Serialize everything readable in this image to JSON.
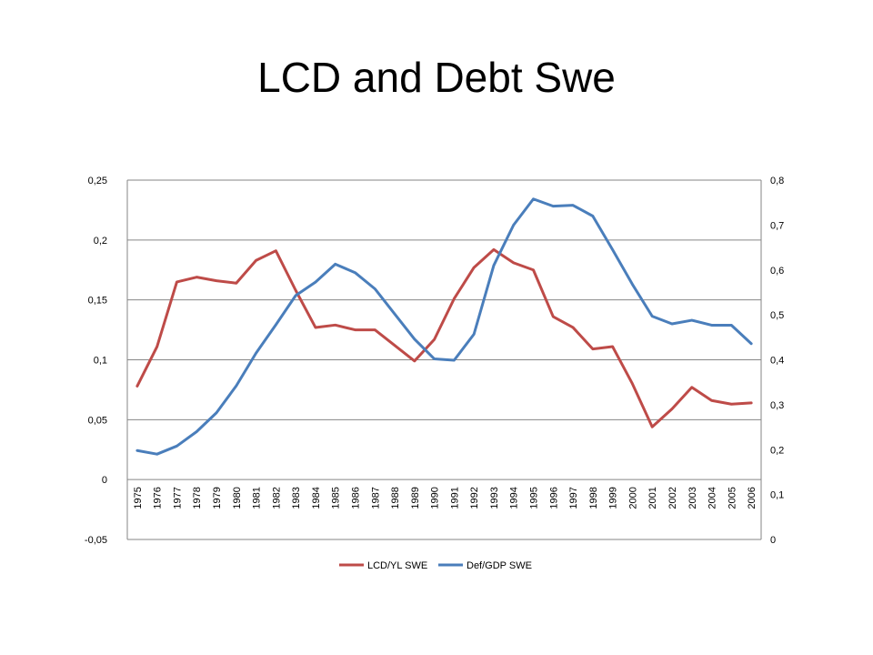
{
  "slide": {
    "title": "LCD and Debt Swe"
  },
  "chart_data": {
    "type": "line",
    "title": "",
    "xlabel": "",
    "ylabel": "",
    "y2label": "",
    "categories": [
      "1975",
      "1976",
      "1977",
      "1978",
      "1979",
      "1980",
      "1981",
      "1982",
      "1983",
      "1984",
      "1985",
      "1986",
      "1987",
      "1988",
      "1989",
      "1990",
      "1991",
      "1992",
      "1993",
      "1994",
      "1995",
      "1996",
      "1997",
      "1998",
      "1999",
      "2000",
      "2001",
      "2002",
      "2003",
      "2004",
      "2005",
      "2006"
    ],
    "ylim": [
      -0.05,
      0.25
    ],
    "yticks": [
      -0.05,
      0,
      0.05,
      0.1,
      0.15,
      0.2,
      0.25
    ],
    "ytick_labels": [
      "-0,05",
      "0",
      "0,05",
      "0,1",
      "0,15",
      "0,2",
      "0,25"
    ],
    "y2lim": [
      0,
      0.8
    ],
    "y2ticks": [
      0,
      0.1,
      0.2,
      0.3,
      0.4,
      0.5,
      0.6,
      0.7,
      0.8
    ],
    "y2tick_labels": [
      "0",
      "0,1",
      "0,2",
      "0,3",
      "0,4",
      "0,5",
      "0,6",
      "0,7",
      "0,8"
    ],
    "grid": true,
    "legend": "bottom",
    "series": [
      {
        "name": "LCD/YL SWE",
        "axis": "left",
        "color": "#be4b48",
        "values": [
          0.078,
          0.111,
          0.165,
          0.169,
          0.166,
          0.164,
          0.183,
          0.191,
          0.158,
          0.127,
          0.129,
          0.125,
          0.125,
          0.112,
          0.099,
          0.117,
          0.151,
          0.177,
          0.192,
          0.181,
          0.175,
          0.136,
          0.127,
          0.109,
          0.111,
          0.08,
          0.044,
          0.059,
          0.077,
          0.066,
          0.063,
          0.064
        ]
      },
      {
        "name": "Def/GDP SWE",
        "axis": "right",
        "color": "#4a7ebb",
        "values": [
          0.198,
          0.19,
          0.208,
          0.24,
          0.282,
          0.342,
          0.415,
          0.478,
          0.543,
          0.573,
          0.613,
          0.594,
          0.558,
          0.502,
          0.446,
          0.402,
          0.399,
          0.457,
          0.61,
          0.7,
          0.758,
          0.742,
          0.744,
          0.72,
          0.645,
          0.568,
          0.497,
          0.48,
          0.488,
          0.477,
          0.477,
          0.436
        ]
      }
    ]
  }
}
